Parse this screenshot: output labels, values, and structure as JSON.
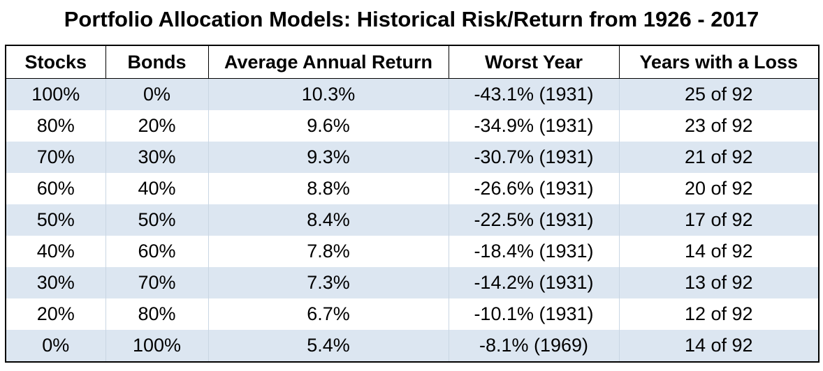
{
  "title": "Portfolio Allocation Models: Historical Risk/Return from 1926 - 2017",
  "columns": [
    "Stocks",
    "Bonds",
    "Average Annual Return",
    "Worst Year",
    "Years with a Loss"
  ],
  "rows": [
    [
      "100%",
      "0%",
      "10.3%",
      "-43.1% (1931)",
      "25 of 92"
    ],
    [
      "80%",
      "20%",
      "9.6%",
      "-34.9% (1931)",
      "23 of 92"
    ],
    [
      "70%",
      "30%",
      "9.3%",
      "-30.7% (1931)",
      "21 of 92"
    ],
    [
      "60%",
      "40%",
      "8.8%",
      "-26.6% (1931)",
      "20 of 92"
    ],
    [
      "50%",
      "50%",
      "8.4%",
      "-22.5% (1931)",
      "17 of 92"
    ],
    [
      "40%",
      "60%",
      "7.8%",
      "-18.4% (1931)",
      "14 of 92"
    ],
    [
      "30%",
      "70%",
      "7.3%",
      "-14.2% (1931)",
      "13 of 92"
    ],
    [
      "20%",
      "80%",
      "6.7%",
      "-10.1% (1931)",
      "12 of 92"
    ],
    [
      "0%",
      "100%",
      "5.4%",
      "-8.1% (1969)",
      "14 of 92"
    ]
  ],
  "colors": {
    "stripe": "#dce6f1",
    "background": "#ffffff",
    "border": "#000000"
  }
}
